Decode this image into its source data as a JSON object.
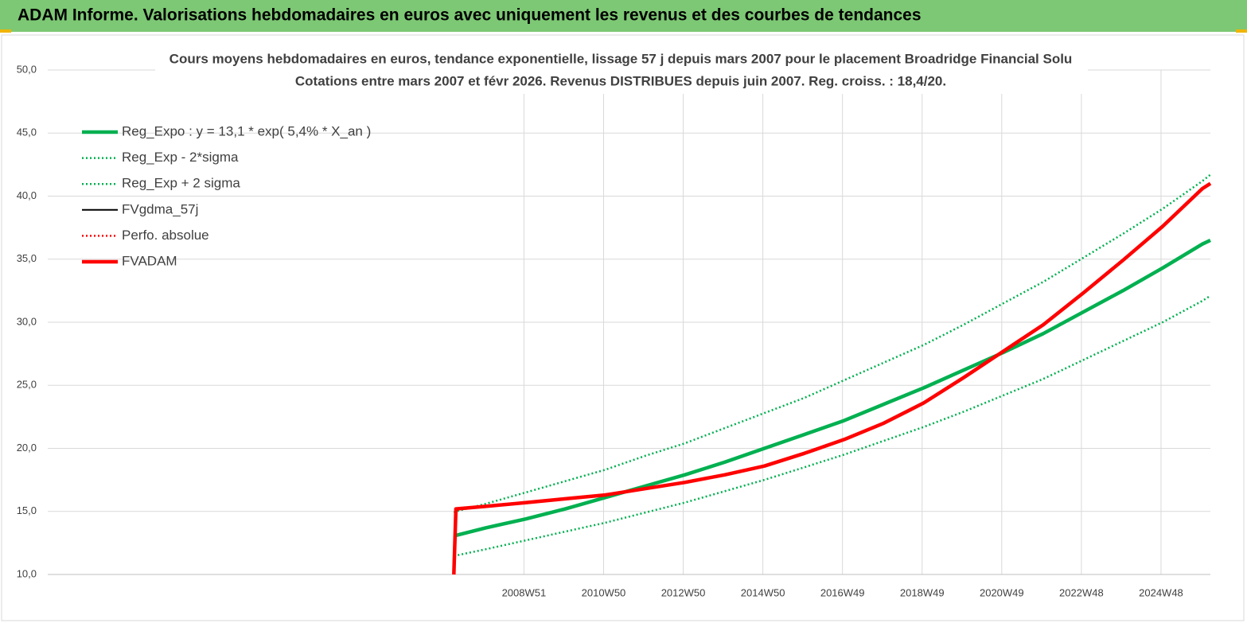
{
  "header": {
    "title": "ADAM Informe. Valorisations hebdomadaires en euros avec uniquement les revenus et des courbes de tendances"
  },
  "chart_data": {
    "type": "line",
    "title": "Cours moyens hebdomadaires en euros, tendance exponentielle, lissage 57 j depuis mars 2007 pour le placement Broadridge Financial Solu",
    "subtitle": "Cotations entre mars 2007 et févr 2026. Revenus DISTRIBUES depuis juin 2007. Reg. croiss. : 18,4/20.",
    "x": [
      2007.2,
      2007.25,
      2008,
      2009,
      2010,
      2011,
      2012,
      2013,
      2014,
      2015,
      2016,
      2017,
      2018,
      2019,
      2020,
      2021,
      2022,
      2023,
      2024,
      2025,
      2026,
      2026.2
    ],
    "series": [
      {
        "name": "Reg_Expo : y = 13,1 * exp( 5,4% *  X_an )",
        "color": "#00b050",
        "style": "thick",
        "values": [
          13.1,
          13.1,
          13.7,
          14.4,
          15.2,
          16.1,
          17.0,
          17.9,
          18.9,
          20.0,
          21.1,
          22.2,
          23.5,
          24.8,
          26.2,
          27.6,
          29.1,
          30.8,
          32.5,
          34.3,
          36.2,
          36.5
        ]
      },
      {
        "name": "Reg_Exp - 2*sigma",
        "color": "#00b050",
        "style": "dotted",
        "values": [
          11.5,
          11.5,
          12.0,
          12.7,
          13.4,
          14.1,
          14.9,
          15.7,
          16.6,
          17.5,
          18.5,
          19.5,
          20.6,
          21.7,
          22.9,
          24.2,
          25.5,
          27.0,
          28.5,
          30.0,
          31.7,
          32.1
        ]
      },
      {
        "name": "Reg_Exp + 2 sigma",
        "color": "#00b050",
        "style": "dotted",
        "values": [
          14.9,
          15.0,
          15.6,
          16.5,
          17.4,
          18.3,
          19.4,
          20.4,
          21.6,
          22.8,
          24.0,
          25.4,
          26.8,
          28.2,
          29.8,
          31.5,
          33.2,
          35.1,
          37.0,
          39.0,
          41.2,
          41.7
        ]
      },
      {
        "name": "FVgdma_57j",
        "color": "#000000",
        "style": "thin",
        "values": [
          10.0,
          15.2,
          15.4,
          15.7,
          16.0,
          16.3,
          16.8,
          17.3,
          17.9,
          18.6,
          19.6,
          20.7,
          22.0,
          23.6,
          25.6,
          27.7,
          29.8,
          32.3,
          34.9,
          37.6,
          40.6,
          41.0
        ]
      },
      {
        "name": "Perfo. absolue",
        "color": "#ff0000",
        "style": "dotted",
        "values": [
          10.0,
          15.2,
          15.4,
          15.7,
          16.0,
          16.3,
          16.8,
          17.3,
          17.9,
          18.6,
          19.6,
          20.7,
          22.0,
          23.6,
          25.6,
          27.7,
          29.8,
          32.3,
          34.9,
          37.6,
          40.6,
          41.0
        ]
      },
      {
        "name": "FVADAM",
        "color": "#ff0000",
        "style": "thick",
        "values": [
          10.0,
          15.2,
          15.4,
          15.7,
          16.0,
          16.3,
          16.8,
          17.3,
          17.9,
          18.6,
          19.6,
          20.7,
          22.0,
          23.6,
          25.6,
          27.7,
          29.8,
          32.3,
          34.9,
          37.6,
          40.6,
          41.0
        ]
      }
    ],
    "xlim": [
      1997,
      2026.2
    ],
    "xticks": [
      {
        "value": 2008.96,
        "label": "2008W51"
      },
      {
        "value": 2010.96,
        "label": "2010W50"
      },
      {
        "value": 2012.96,
        "label": "2012W50"
      },
      {
        "value": 2014.96,
        "label": "2014W50"
      },
      {
        "value": 2016.96,
        "label": "2016W49"
      },
      {
        "value": 2018.96,
        "label": "2018W49"
      },
      {
        "value": 2020.96,
        "label": "2020W49"
      },
      {
        "value": 2022.96,
        "label": "2022W48"
      },
      {
        "value": 2024.96,
        "label": "2024W48"
      }
    ],
    "ylim": [
      10,
      50
    ],
    "yticks": [
      {
        "value": 10,
        "label": "10,0"
      },
      {
        "value": 15,
        "label": "15,0"
      },
      {
        "value": 20,
        "label": "20,0"
      },
      {
        "value": 25,
        "label": "25,0"
      },
      {
        "value": 30,
        "label": "30,0"
      },
      {
        "value": 35,
        "label": "35,0"
      },
      {
        "value": 40,
        "label": "40,0"
      },
      {
        "value": 45,
        "label": "45,0"
      },
      {
        "value": 50,
        "label": "50,0"
      }
    ],
    "grid": true,
    "legend": "upper left"
  }
}
